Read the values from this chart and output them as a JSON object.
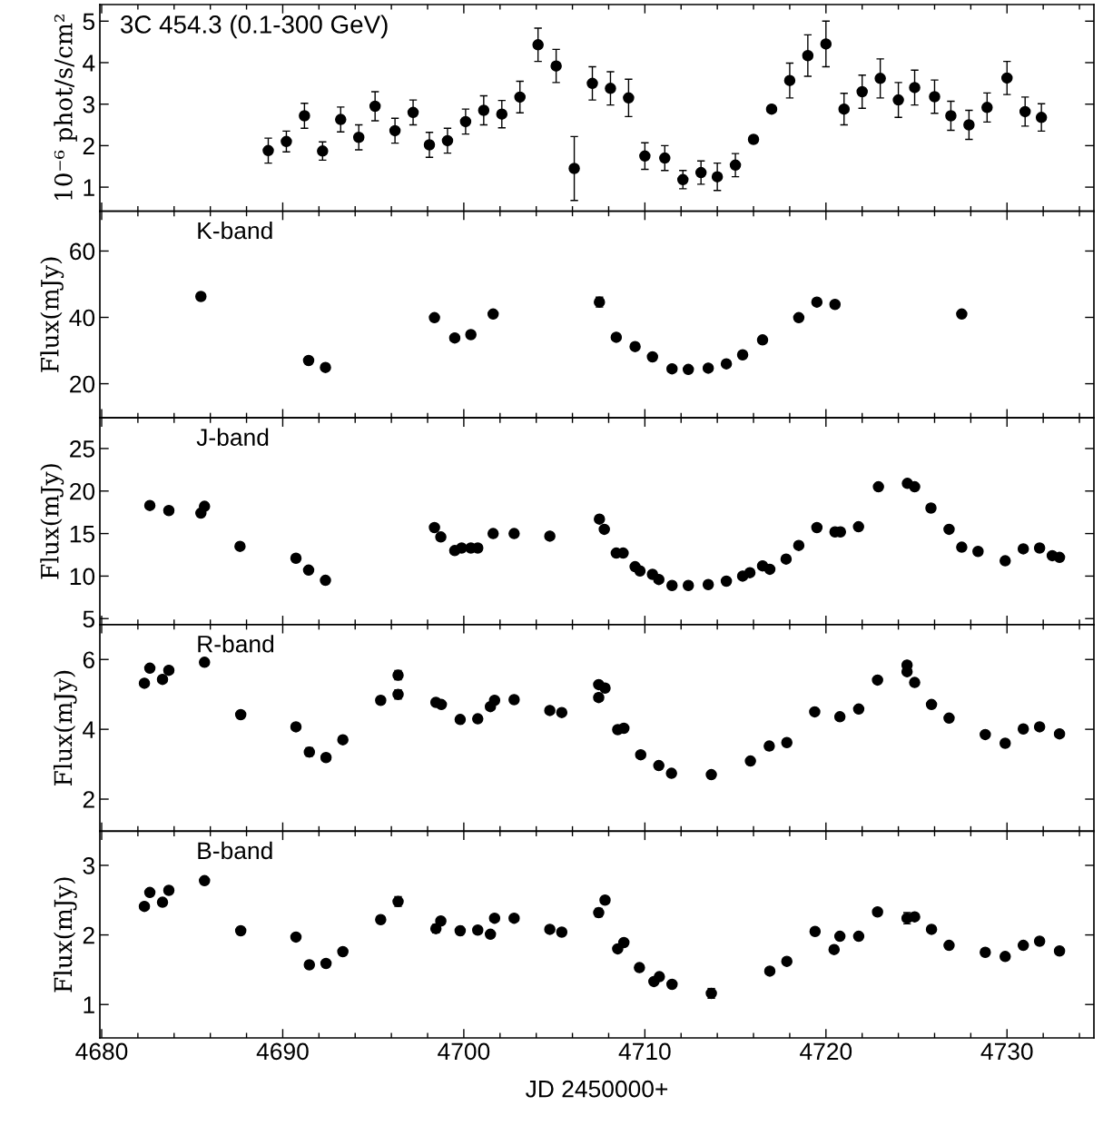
{
  "chart_data": [
    {
      "type": "scatter",
      "ylabel": "10⁻⁶ phot/s/cm²",
      "annotations": [
        "3C 454.3 (0.1-300 GeV)"
      ],
      "marker": "circle",
      "grid": false,
      "tick_labels": "y",
      "xlim": [
        4679.9,
        4734.8
      ],
      "ylim": [
        0.42,
        5.4
      ],
      "yticks": [
        1,
        2,
        3,
        4,
        5
      ],
      "xticks": [
        4680,
        {
          "value": 4682,
          "label": null
        },
        {
          "value": 4684,
          "label": null
        },
        {
          "value": 4686,
          "label": null
        },
        {
          "value": 4688,
          "label": null
        },
        4690,
        {
          "value": 4692,
          "label": null
        },
        {
          "value": 4694,
          "label": null
        },
        {
          "value": 4696,
          "label": null
        },
        {
          "value": 4698,
          "label": null
        },
        4700,
        {
          "value": 4702,
          "label": null
        },
        {
          "value": 4704,
          "label": null
        },
        {
          "value": 4706,
          "label": null
        },
        {
          "value": 4708,
          "label": null
        },
        4710,
        {
          "value": 4712,
          "label": null
        },
        {
          "value": 4714,
          "label": null
        },
        {
          "value": 4716,
          "label": null
        },
        {
          "value": 4718,
          "label": null
        },
        4720,
        {
          "value": 4722,
          "label": null
        },
        {
          "value": 4724,
          "label": null
        },
        {
          "value": 4726,
          "label": null
        },
        {
          "value": 4728,
          "label": null
        },
        4730,
        {
          "value": 4732,
          "label": null
        },
        {
          "value": 4734,
          "label": null
        }
      ],
      "series": [
        {
          "color": "#000000",
          "x": [
            4689.2,
            4690.2,
            4691.2,
            4692.2,
            4693.2,
            4694.2,
            4695.1,
            4696.2,
            4697.2,
            4698.1,
            4699.1,
            4700.1,
            4701.1,
            4702.1,
            4703.1,
            4704.1,
            4705.1,
            4706.1,
            4707.1,
            4708.1,
            4709.1,
            4710.0,
            4711.1,
            4712.1,
            4713.1,
            4714.0,
            4715.0,
            4716.0,
            4717.0,
            4718.0,
            4719.0,
            4720.0,
            4721.0,
            4722.0,
            4723.0,
            4724.0,
            4724.9,
            4726.0,
            4726.9,
            4727.9,
            4728.9,
            4730.0,
            4731.0,
            4731.9
          ],
          "values": [
            1.88,
            2.1,
            2.72,
            1.87,
            2.63,
            2.2,
            2.95,
            2.36,
            2.8,
            2.02,
            2.12,
            2.58,
            2.85,
            2.76,
            3.17,
            4.43,
            3.92,
            1.45,
            3.5,
            3.38,
            3.15,
            1.75,
            1.7,
            1.18,
            1.35,
            1.25,
            1.53,
            2.15,
            2.88,
            3.57,
            4.17,
            4.45,
            2.88,
            3.3,
            3.62,
            3.1,
            3.4,
            3.18,
            2.72,
            2.5,
            2.92,
            3.63,
            2.82,
            2.68
          ],
          "errors": [
            0.3,
            0.25,
            0.3,
            0.22,
            0.3,
            0.3,
            0.35,
            0.3,
            0.3,
            0.3,
            0.3,
            0.3,
            0.35,
            0.33,
            0.38,
            0.4,
            0.4,
            0.77,
            0.4,
            0.4,
            0.45,
            0.32,
            0.3,
            0.22,
            0.28,
            0.33,
            0.28,
            0.04,
            0.08,
            0.42,
            0.5,
            0.55,
            0.38,
            0.4,
            0.47,
            0.42,
            0.42,
            0.4,
            0.35,
            0.35,
            0.35,
            0.4,
            0.35,
            0.33
          ]
        }
      ]
    },
    {
      "type": "scatter",
      "ylabel": "Flux(mJy)",
      "annotations": [
        "K-band"
      ],
      "marker": "circle",
      "grid": false,
      "tick_labels": "y",
      "xlim": [
        4679.9,
        4734.8
      ],
      "ylim": [
        9.7,
        72
      ],
      "yticks": [
        20,
        40,
        60
      ],
      "xticks": [
        4680,
        {
          "value": 4682,
          "label": null
        },
        {
          "value": 4684,
          "label": null
        },
        {
          "value": 4686,
          "label": null
        },
        {
          "value": 4688,
          "label": null
        },
        4690,
        {
          "value": 4692,
          "label": null
        },
        {
          "value": 4694,
          "label": null
        },
        {
          "value": 4696,
          "label": null
        },
        {
          "value": 4698,
          "label": null
        },
        4700,
        {
          "value": 4702,
          "label": null
        },
        {
          "value": 4704,
          "label": null
        },
        {
          "value": 4706,
          "label": null
        },
        {
          "value": 4708,
          "label": null
        },
        4710,
        {
          "value": 4712,
          "label": null
        },
        {
          "value": 4714,
          "label": null
        },
        {
          "value": 4716,
          "label": null
        },
        {
          "value": 4718,
          "label": null
        },
        4720,
        {
          "value": 4722,
          "label": null
        },
        {
          "value": 4724,
          "label": null
        },
        {
          "value": 4726,
          "label": null
        },
        {
          "value": 4728,
          "label": null
        },
        4730,
        {
          "value": 4732,
          "label": null
        },
        {
          "value": 4734,
          "label": null
        }
      ],
      "series": [
        {
          "color": "#000000",
          "x": [
            4685.48,
            4691.43,
            4692.36,
            4698.38,
            4699.5,
            4700.39,
            4701.62,
            4707.49,
            4708.42,
            4709.46,
            4710.42,
            4711.5,
            4712.4,
            4713.5,
            4714.5,
            4715.4,
            4716.5,
            4718.5,
            4719.5,
            4720.5,
            4727.5
          ],
          "values": [
            46.3,
            27.0,
            24.9,
            39.9,
            33.8,
            34.8,
            41.0,
            44.6,
            34.0,
            31.2,
            28.1,
            24.5,
            24.3,
            24.7,
            26.0,
            28.7,
            33.2,
            39.9,
            44.6,
            43.9,
            41.0
          ],
          "errors": [
            null,
            null,
            null,
            null,
            null,
            1.0,
            null,
            1.5,
            0.6,
            null,
            null,
            null,
            null,
            null,
            null,
            null,
            null,
            null,
            0.7,
            null,
            null
          ]
        }
      ]
    },
    {
      "type": "scatter",
      "ylabel": "Flux(mJy)",
      "annotations": [
        "J-band"
      ],
      "marker": "circle",
      "grid": false,
      "tick_labels": "y",
      "xlim": [
        4679.9,
        4734.8
      ],
      "ylim": [
        4.3,
        28.6
      ],
      "yticks": [
        5,
        10,
        15,
        20,
        25
      ],
      "xticks": [
        4680,
        {
          "value": 4682,
          "label": null
        },
        {
          "value": 4684,
          "label": null
        },
        {
          "value": 4686,
          "label": null
        },
        {
          "value": 4688,
          "label": null
        },
        4690,
        {
          "value": 4692,
          "label": null
        },
        {
          "value": 4694,
          "label": null
        },
        {
          "value": 4696,
          "label": null
        },
        {
          "value": 4698,
          "label": null
        },
        4700,
        {
          "value": 4702,
          "label": null
        },
        {
          "value": 4704,
          "label": null
        },
        {
          "value": 4706,
          "label": null
        },
        {
          "value": 4708,
          "label": null
        },
        4710,
        {
          "value": 4712,
          "label": null
        },
        {
          "value": 4714,
          "label": null
        },
        {
          "value": 4716,
          "label": null
        },
        {
          "value": 4718,
          "label": null
        },
        4720,
        {
          "value": 4722,
          "label": null
        },
        {
          "value": 4724,
          "label": null
        },
        {
          "value": 4726,
          "label": null
        },
        {
          "value": 4728,
          "label": null
        },
        4730,
        {
          "value": 4732,
          "label": null
        },
        {
          "value": 4734,
          "label": null
        }
      ],
      "series": [
        {
          "color": "#000000",
          "x": [
            4682.66,
            4683.71,
            4685.48,
            4685.68,
            4687.64,
            4690.73,
            4691.43,
            4692.36,
            4698.38,
            4698.73,
            4699.5,
            4699.88,
            4700.39,
            4700.77,
            4701.62,
            4702.78,
            4704.75,
            4707.49,
            4707.76,
            4708.42,
            4708.8,
            4709.46,
            4709.73,
            4710.42,
            4710.77,
            4711.5,
            4712.4,
            4713.5,
            4714.5,
            4715.4,
            4715.8,
            4716.5,
            4716.9,
            4717.8,
            4718.5,
            4719.5,
            4720.5,
            4720.8,
            4721.8,
            4722.9,
            4724.5,
            4724.9,
            4725.8,
            4726.8,
            4727.5,
            4728.4,
            4729.9,
            4730.9,
            4731.8,
            4732.5,
            4732.9
          ],
          "values": [
            18.3,
            17.7,
            17.4,
            18.2,
            13.5,
            12.1,
            10.7,
            9.5,
            15.7,
            14.6,
            13.0,
            13.3,
            13.3,
            13.3,
            15.0,
            15.0,
            14.7,
            16.7,
            15.5,
            12.7,
            12.7,
            11.1,
            10.6,
            10.2,
            9.6,
            8.9,
            8.9,
            9.0,
            9.4,
            10.0,
            10.4,
            11.2,
            10.8,
            12.0,
            13.6,
            15.7,
            15.2,
            15.2,
            15.8,
            20.5,
            20.9,
            20.5,
            18.0,
            15.5,
            13.4,
            12.9,
            11.8,
            13.2,
            13.3,
            12.4,
            12.2
          ]
        }
      ]
    },
    {
      "type": "scatter",
      "ylabel": "Flux(mJy)",
      "annotations": [
        "R-band"
      ],
      "marker": "circle",
      "grid": false,
      "tick_labels": "y",
      "xlim": [
        4679.9,
        4734.8
      ],
      "ylim": [
        1.08,
        7.0
      ],
      "yticks": [
        2,
        4,
        6
      ],
      "xticks": [
        4680,
        {
          "value": 4682,
          "label": null
        },
        {
          "value": 4684,
          "label": null
        },
        {
          "value": 4686,
          "label": null
        },
        {
          "value": 4688,
          "label": null
        },
        4690,
        {
          "value": 4692,
          "label": null
        },
        {
          "value": 4694,
          "label": null
        },
        {
          "value": 4696,
          "label": null
        },
        {
          "value": 4698,
          "label": null
        },
        4700,
        {
          "value": 4702,
          "label": null
        },
        {
          "value": 4704,
          "label": null
        },
        {
          "value": 4706,
          "label": null
        },
        {
          "value": 4708,
          "label": null
        },
        4710,
        {
          "value": 4712,
          "label": null
        },
        {
          "value": 4714,
          "label": null
        },
        {
          "value": 4716,
          "label": null
        },
        {
          "value": 4718,
          "label": null
        },
        4720,
        {
          "value": 4722,
          "label": null
        },
        {
          "value": 4724,
          "label": null
        },
        {
          "value": 4726,
          "label": null
        },
        {
          "value": 4728,
          "label": null
        },
        4730,
        {
          "value": 4732,
          "label": null
        },
        {
          "value": 4734,
          "label": null
        }
      ],
      "series": [
        {
          "color": "#000000",
          "x": [
            4682.36,
            4682.66,
            4683.36,
            4683.71,
            4685.68,
            4687.68,
            4690.73,
            4691.47,
            4692.39,
            4693.32,
            4695.41,
            4696.37,
            4696.37,
            4698.46,
            4698.76,
            4699.8,
            4700.77,
            4701.47,
            4701.7,
            4702.78,
            4704.75,
            4705.41,
            4707.45,
            4707.45,
            4707.8,
            4708.5,
            4708.84,
            4709.77,
            4710.77,
            4711.47,
            4713.67,
            4715.83,
            4716.87,
            4717.84,
            4719.38,
            4720.77,
            4721.81,
            4722.85,
            4724.48,
            4724.48,
            4724.9,
            4725.83,
            4726.8,
            4728.8,
            4729.9,
            4730.9,
            4731.8,
            4732.9
          ],
          "values": [
            5.32,
            5.75,
            5.43,
            5.69,
            5.92,
            4.42,
            4.07,
            3.35,
            3.19,
            3.7,
            4.83,
            5.0,
            5.55,
            4.77,
            4.71,
            4.28,
            4.3,
            4.65,
            4.83,
            4.85,
            4.54,
            4.48,
            4.91,
            5.28,
            5.18,
            3.99,
            4.03,
            3.27,
            2.96,
            2.74,
            2.7,
            3.09,
            3.52,
            3.62,
            4.5,
            4.36,
            4.58,
            5.41,
            5.84,
            5.65,
            5.34,
            4.71,
            4.32,
            3.85,
            3.6,
            4.01,
            4.07,
            3.87
          ],
          "errors": [
            null,
            null,
            null,
            null,
            null,
            null,
            null,
            0.12,
            0.1,
            null,
            0.1,
            0.13,
            0.13,
            null,
            null,
            null,
            null,
            null,
            null,
            null,
            null,
            null,
            0.1,
            null,
            null,
            null,
            null,
            null,
            null,
            null,
            null,
            null,
            0.1,
            null,
            null,
            null,
            null,
            null,
            0.1,
            null,
            null,
            null,
            null,
            null,
            null,
            null,
            null,
            null
          ]
        }
      ]
    },
    {
      "type": "scatter",
      "ylabel": "Flux(mJy)",
      "xlabel": "JD 2450000+",
      "annotations": [
        "B-band"
      ],
      "marker": "circle",
      "grid": false,
      "xlim": [
        4679.9,
        4734.8
      ],
      "ylim": [
        0.52,
        3.49
      ],
      "yticks": [
        1,
        2,
        3
      ],
      "xticks": [
        4680,
        {
          "value": 4682,
          "label": null
        },
        {
          "value": 4684,
          "label": null
        },
        {
          "value": 4686,
          "label": null
        },
        {
          "value": 4688,
          "label": null
        },
        4690,
        {
          "value": 4692,
          "label": null
        },
        {
          "value": 4694,
          "label": null
        },
        {
          "value": 4696,
          "label": null
        },
        {
          "value": 4698,
          "label": null
        },
        4700,
        {
          "value": 4702,
          "label": null
        },
        {
          "value": 4704,
          "label": null
        },
        {
          "value": 4706,
          "label": null
        },
        {
          "value": 4708,
          "label": null
        },
        4710,
        {
          "value": 4712,
          "label": null
        },
        {
          "value": 4714,
          "label": null
        },
        {
          "value": 4716,
          "label": null
        },
        {
          "value": 4718,
          "label": null
        },
        4720,
        {
          "value": 4722,
          "label": null
        },
        {
          "value": 4724,
          "label": null
        },
        {
          "value": 4726,
          "label": null
        },
        {
          "value": 4728,
          "label": null
        },
        4730,
        {
          "value": 4732,
          "label": null
        },
        {
          "value": 4734,
          "label": null
        }
      ],
      "series": [
        {
          "color": "#000000",
          "x": [
            4682.36,
            4682.66,
            4683.36,
            4683.71,
            4685.68,
            4687.68,
            4690.73,
            4691.47,
            4692.39,
            4693.32,
            4695.41,
            4696.37,
            4698.46,
            4698.73,
            4699.8,
            4700.77,
            4701.47,
            4701.7,
            4702.78,
            4704.75,
            4705.41,
            4707.45,
            4707.8,
            4708.5,
            4708.84,
            4709.7,
            4710.5,
            4710.8,
            4711.5,
            4713.67,
            4716.9,
            4717.84,
            4719.4,
            4720.45,
            4720.77,
            4721.81,
            4722.85,
            4724.48,
            4724.9,
            4725.83,
            4726.8,
            4728.8,
            4729.9,
            4730.9,
            4731.8,
            4732.9
          ],
          "values": [
            2.41,
            2.61,
            2.47,
            2.64,
            2.78,
            2.06,
            1.97,
            1.57,
            1.59,
            1.76,
            2.22,
            2.48,
            2.09,
            2.2,
            2.06,
            2.07,
            2.01,
            2.24,
            2.24,
            2.08,
            2.04,
            2.32,
            2.5,
            1.8,
            1.89,
            1.53,
            1.33,
            1.4,
            1.29,
            1.16,
            1.48,
            1.62,
            2.05,
            1.79,
            1.98,
            1.98,
            2.33,
            2.24,
            2.26,
            2.08,
            1.85,
            1.75,
            1.69,
            1.85,
            1.91,
            1.77
          ],
          "errors": [
            null,
            null,
            null,
            null,
            null,
            null,
            null,
            0.05,
            null,
            null,
            null,
            0.07,
            0.06,
            null,
            null,
            null,
            null,
            null,
            null,
            null,
            null,
            0.06,
            null,
            null,
            null,
            null,
            null,
            null,
            null,
            0.07,
            null,
            null,
            null,
            null,
            null,
            null,
            null,
            0.08,
            null,
            null,
            null,
            null,
            null,
            null,
            null,
            0.04
          ]
        }
      ]
    }
  ]
}
